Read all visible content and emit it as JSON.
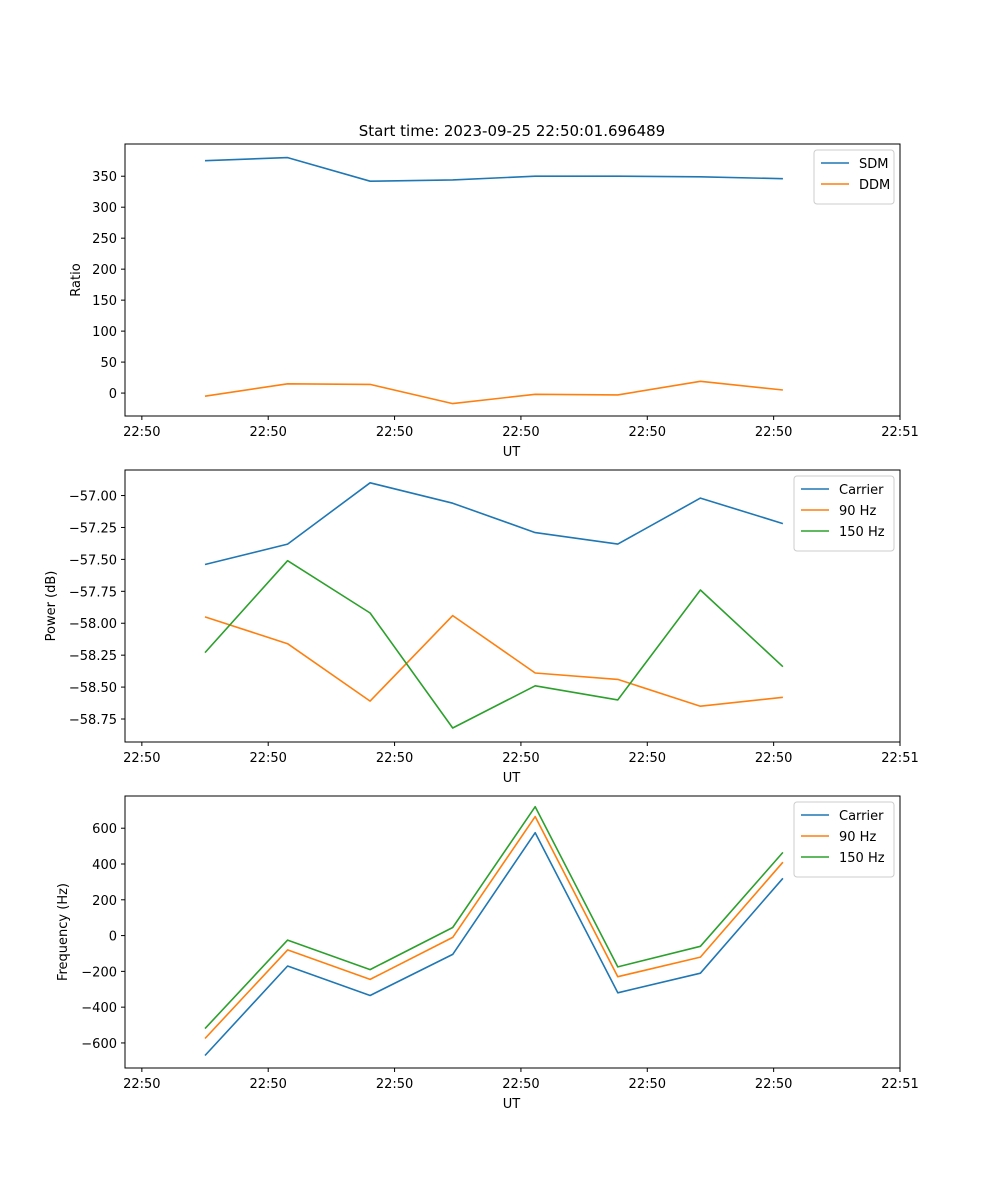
{
  "figure": {
    "title": "Start time: 2023-09-25 22:50:01.696489"
  },
  "chart_data": [
    {
      "type": "line",
      "xlabel": "UT",
      "ylabel": "Ratio",
      "xlim": [
        0,
        9.2
      ],
      "x_ticks": [
        {
          "value": 0.2,
          "label": "22:50"
        },
        {
          "value": 1.7,
          "label": "22:50"
        },
        {
          "value": 3.2,
          "label": "22:50"
        },
        {
          "value": 4.7,
          "label": "22:50"
        },
        {
          "value": 6.2,
          "label": "22:50"
        },
        {
          "value": 7.7,
          "label": "22:50"
        },
        {
          "value": 9.2,
          "label": "22:51"
        }
      ],
      "ylim": [
        -37,
        402
      ],
      "y_ticks": [
        0,
        50,
        100,
        150,
        200,
        250,
        300,
        350
      ],
      "y_tick_labels": [
        "0",
        "50",
        "100",
        "150",
        "200",
        "250",
        "300",
        "350"
      ],
      "x": [
        0.95,
        1.93,
        2.91,
        3.89,
        4.87,
        5.85,
        6.83,
        7.81
      ],
      "series": [
        {
          "name": "SDM",
          "color": "#1f77b4",
          "values": [
            375,
            380,
            342,
            344,
            350,
            350,
            349,
            346
          ]
        },
        {
          "name": "DDM",
          "color": "#ff7f0e",
          "values": [
            -5,
            15,
            14,
            -17,
            -2,
            -3,
            19,
            5
          ]
        }
      ],
      "legend": "top-right"
    },
    {
      "type": "line",
      "xlabel": "UT",
      "ylabel": "Power (dB)",
      "xlim": [
        0,
        9.2
      ],
      "x_ticks": [
        {
          "value": 0.2,
          "label": "22:50"
        },
        {
          "value": 1.7,
          "label": "22:50"
        },
        {
          "value": 3.2,
          "label": "22:50"
        },
        {
          "value": 4.7,
          "label": "22:50"
        },
        {
          "value": 6.2,
          "label": "22:50"
        },
        {
          "value": 7.7,
          "label": "22:50"
        },
        {
          "value": 9.2,
          "label": "22:51"
        }
      ],
      "ylim": [
        -58.93,
        -56.8
      ],
      "y_ticks": [
        -57.0,
        -57.25,
        -57.5,
        -57.75,
        -58.0,
        -58.25,
        -58.5,
        -58.75
      ],
      "y_tick_labels": [
        "−57.00",
        "−57.25",
        "−57.50",
        "−57.75",
        "−58.00",
        "−58.25",
        "−58.50",
        "−58.75"
      ],
      "x": [
        0.95,
        1.93,
        2.91,
        3.89,
        4.87,
        5.85,
        6.83,
        7.81
      ],
      "series": [
        {
          "name": "Carrier",
          "color": "#1f77b4",
          "values": [
            -57.54,
            -57.38,
            -56.9,
            -57.06,
            -57.29,
            -57.38,
            -57.02,
            -57.22
          ]
        },
        {
          "name": "90 Hz",
          "color": "#ff7f0e",
          "values": [
            -57.95,
            -58.16,
            -58.61,
            -57.94,
            -58.39,
            -58.44,
            -58.65,
            -58.58
          ]
        },
        {
          "name": "150 Hz",
          "color": "#2ca02c",
          "values": [
            -58.23,
            -57.51,
            -57.92,
            -58.82,
            -58.49,
            -58.6,
            -57.74,
            -58.34
          ]
        }
      ],
      "legend": "top-right"
    },
    {
      "type": "line",
      "xlabel": "UT",
      "ylabel": "Frequency (Hz)",
      "xlim": [
        0,
        9.2
      ],
      "x_ticks": [
        {
          "value": 0.2,
          "label": "22:50"
        },
        {
          "value": 1.7,
          "label": "22:50"
        },
        {
          "value": 3.2,
          "label": "22:50"
        },
        {
          "value": 4.7,
          "label": "22:50"
        },
        {
          "value": 6.2,
          "label": "22:50"
        },
        {
          "value": 7.7,
          "label": "22:50"
        },
        {
          "value": 9.2,
          "label": "22:51"
        }
      ],
      "ylim": [
        -740,
        780
      ],
      "y_ticks": [
        -600,
        -400,
        -200,
        0,
        200,
        400,
        600
      ],
      "y_tick_labels": [
        "−600",
        "−400",
        "−200",
        "0",
        "200",
        "400",
        "600"
      ],
      "x": [
        0.95,
        1.93,
        2.91,
        3.89,
        4.87,
        5.85,
        6.83,
        7.81
      ],
      "series": [
        {
          "name": "Carrier",
          "color": "#1f77b4",
          "values": [
            -670,
            -170,
            -335,
            -105,
            575,
            -320,
            -210,
            320
          ]
        },
        {
          "name": "90 Hz",
          "color": "#ff7f0e",
          "values": [
            -575,
            -80,
            -245,
            -10,
            665,
            -230,
            -120,
            410
          ]
        },
        {
          "name": "150 Hz",
          "color": "#2ca02c",
          "values": [
            -520,
            -25,
            -190,
            45,
            720,
            -175,
            -60,
            465
          ]
        }
      ],
      "legend": "top-right"
    }
  ]
}
